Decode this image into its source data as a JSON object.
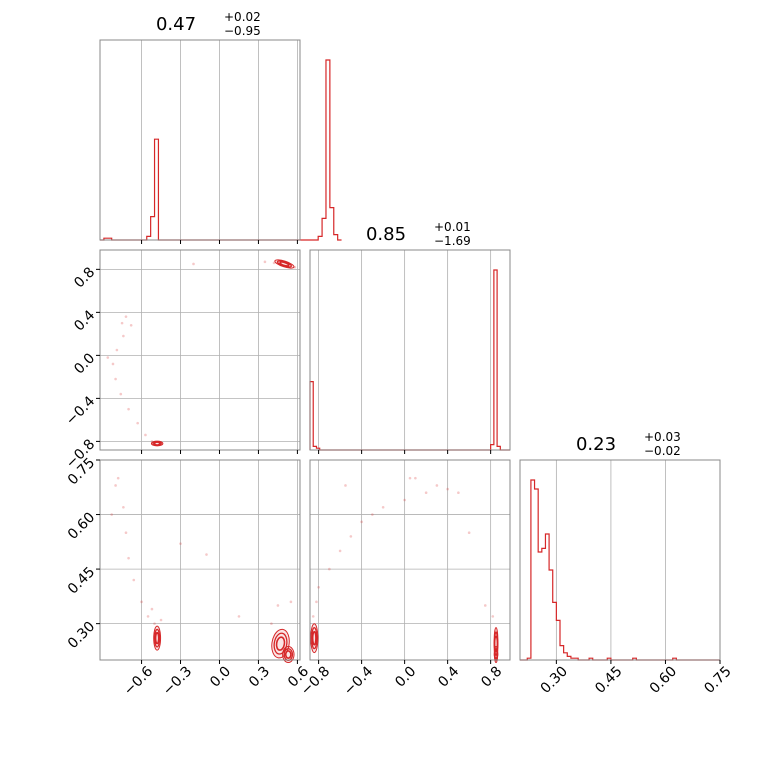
{
  "chart_data": {
    "type": "corner",
    "color": "#d62728",
    "grid": true,
    "titles": [
      {
        "value": "0.47",
        "plus": "+0.02",
        "minus": "−0.95"
      },
      {
        "value": "0.85",
        "plus": "+0.01",
        "minus": "−1.69"
      },
      {
        "value": "0.23",
        "plus": "+0.03",
        "minus": "−0.02"
      }
    ],
    "params": [
      {
        "range": [
          -0.92,
          0.62
        ],
        "ticks": [
          -0.6,
          -0.3,
          0.0,
          0.3,
          0.6
        ],
        "tick_labels": [
          "−0.6",
          "−0.3",
          "0.0",
          "0.3",
          "0.6"
        ]
      },
      {
        "range": [
          -0.88,
          0.98
        ],
        "ticks": [
          -0.8,
          -0.4,
          0.0,
          0.4,
          0.8
        ],
        "tick_labels": [
          "−0.8",
          "−0.4",
          "0.0",
          "0.4",
          "0.8"
        ]
      },
      {
        "range": [
          0.2,
          0.75
        ],
        "ticks": [
          0.3,
          0.45,
          0.6,
          0.75
        ],
        "tick_labels": [
          "0.30",
          "0.45",
          "0.60",
          "0.75"
        ]
      }
    ],
    "hist": [
      {
        "edges_start": -0.92,
        "bin_width": 0.03,
        "counts": [
          0,
          1,
          1,
          0,
          0,
          0,
          0,
          0,
          0,
          0,
          0,
          0,
          2,
          13,
          56,
          0,
          0,
          0,
          0,
          0,
          0,
          0,
          0,
          0,
          0,
          0,
          0,
          0,
          0,
          0,
          0,
          0,
          0,
          0,
          0,
          0,
          0,
          0,
          0,
          0,
          0,
          0,
          0,
          0,
          0,
          0,
          0,
          0,
          0,
          0,
          0,
          0,
          0,
          0,
          0,
          0,
          2,
          12,
          100,
          18,
          3,
          0
        ]
      },
      {
        "edges_start": -0.88,
        "bin_width": 0.03,
        "counts": [
          38,
          2,
          1,
          0,
          0,
          0,
          0,
          0,
          0,
          0,
          0,
          0,
          0,
          0,
          0,
          0,
          0,
          0,
          0,
          0,
          0,
          0,
          0,
          0,
          0,
          0,
          0,
          0,
          0,
          0,
          0,
          0,
          0,
          0,
          0,
          0,
          0,
          0,
          0,
          0,
          0,
          0,
          0,
          0,
          0,
          0,
          0,
          0,
          0,
          0,
          0,
          0,
          0,
          0,
          0,
          0,
          3,
          100,
          2,
          0,
          0,
          0
        ]
      },
      {
        "edges_start": 0.2,
        "bin_width": 0.01,
        "counts": [
          0,
          0,
          1,
          100,
          95,
          60,
          62,
          70,
          50,
          32,
          22,
          8,
          4,
          2,
          1,
          1,
          0,
          0,
          0,
          1,
          0,
          0,
          0,
          0,
          1,
          0,
          0,
          0,
          0,
          0,
          0,
          1,
          0,
          0,
          0,
          0,
          0,
          0,
          0,
          0,
          0,
          0,
          1,
          0,
          0,
          0,
          0,
          0,
          0,
          0,
          0,
          0,
          0,
          0,
          0
        ]
      }
    ],
    "joint": [
      {
        "x_param": 0,
        "y_param": 1,
        "modes": [
          {
            "x": 0.5,
            "y": 0.85,
            "sx": 0.035,
            "sy": 0.012,
            "rho": -0.6
          },
          {
            "x": -0.48,
            "y": -0.82,
            "sx": 0.02,
            "sy": 0.01,
            "rho": 0.0
          }
        ],
        "scatter": [
          [
            -0.72,
            0.36
          ],
          [
            -0.68,
            0.28
          ],
          [
            -0.74,
            0.18
          ],
          [
            -0.79,
            0.05
          ],
          [
            -0.82,
            -0.08
          ],
          [
            -0.8,
            -0.22
          ],
          [
            -0.76,
            -0.36
          ],
          [
            -0.7,
            -0.5
          ],
          [
            -0.63,
            -0.63
          ],
          [
            -0.57,
            -0.74
          ],
          [
            -0.52,
            -0.8
          ],
          [
            -0.2,
            0.85
          ],
          [
            0.35,
            0.87
          ],
          [
            0.42,
            0.86
          ],
          [
            0.58,
            0.82
          ],
          [
            -0.86,
            -0.02
          ],
          [
            -0.75,
            0.3
          ]
        ]
      },
      {
        "x_param": 0,
        "y_param": 2,
        "modes": [
          {
            "x": -0.48,
            "y": 0.26,
            "sx": 0.012,
            "sy": 0.015,
            "rho": 0.0
          },
          {
            "x": 0.47,
            "y": 0.245,
            "sx": 0.03,
            "sy": 0.018,
            "rho": -0.3
          },
          {
            "x": 0.53,
            "y": 0.215,
            "sx": 0.02,
            "sy": 0.01,
            "rho": 0.0
          }
        ],
        "scatter": [
          [
            -0.78,
            0.7
          ],
          [
            -0.74,
            0.62
          ],
          [
            -0.8,
            0.68
          ],
          [
            -0.72,
            0.55
          ],
          [
            -0.7,
            0.48
          ],
          [
            -0.66,
            0.42
          ],
          [
            -0.6,
            0.36
          ],
          [
            -0.55,
            0.32
          ],
          [
            -0.5,
            0.3
          ],
          [
            -0.45,
            0.31
          ],
          [
            -0.52,
            0.34
          ],
          [
            -0.1,
            0.49
          ],
          [
            0.15,
            0.32
          ],
          [
            0.45,
            0.35
          ],
          [
            0.4,
            0.3
          ],
          [
            0.55,
            0.36
          ],
          [
            -0.3,
            0.52
          ],
          [
            -0.83,
            0.6
          ]
        ]
      },
      {
        "x_param": 1,
        "y_param": 2,
        "modes": [
          {
            "x": -0.84,
            "y": 0.26,
            "sx": 0.015,
            "sy": 0.018,
            "rho": 0.0
          },
          {
            "x": 0.85,
            "y": 0.245,
            "sx": 0.008,
            "sy": 0.02,
            "rho": 0.0
          },
          {
            "x": 0.85,
            "y": 0.215,
            "sx": 0.006,
            "sy": 0.01,
            "rho": 0.0
          }
        ],
        "scatter": [
          [
            -0.8,
            0.4
          ],
          [
            -0.7,
            0.45
          ],
          [
            -0.6,
            0.5
          ],
          [
            -0.5,
            0.54
          ],
          [
            -0.4,
            0.58
          ],
          [
            -0.3,
            0.6
          ],
          [
            -0.2,
            0.62
          ],
          [
            0.0,
            0.64
          ],
          [
            0.1,
            0.7
          ],
          [
            0.2,
            0.66
          ],
          [
            0.3,
            0.68
          ],
          [
            0.4,
            0.67
          ],
          [
            0.5,
            0.66
          ],
          [
            -0.55,
            0.68
          ],
          [
            0.6,
            0.55
          ],
          [
            0.75,
            0.35
          ],
          [
            0.82,
            0.32
          ],
          [
            -0.85,
            0.32
          ],
          [
            -0.82,
            0.36
          ],
          [
            0.05,
            0.7
          ]
        ]
      }
    ]
  }
}
